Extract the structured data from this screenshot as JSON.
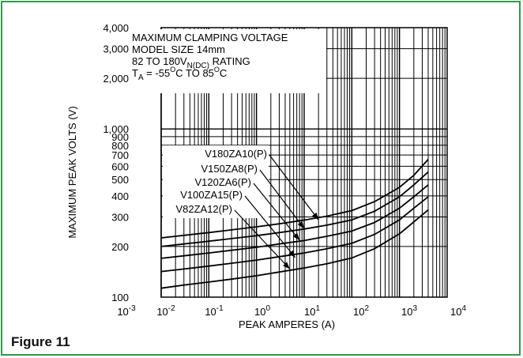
{
  "figure_caption": "Figure 11",
  "colors": {
    "border": "#2e9b4a",
    "ink": "#000000"
  },
  "chart_data": {
    "type": "line",
    "title_lines": [
      {
        "base": "MAXIMUM CLAMPING VOLTAGE",
        "sub": "",
        "sup1": "",
        "mid": "",
        "sup2": "",
        "rest": ""
      },
      {
        "base": "MODEL SIZE 14mm",
        "sub": "",
        "sup1": "",
        "mid": "",
        "sup2": "",
        "rest": ""
      },
      {
        "base": "82 TO 180V",
        "sub": "N(DC)",
        "sup1": "",
        "mid": "",
        "sup2": "",
        "rest": " RATING"
      },
      {
        "base": "T",
        "sub": "A",
        "sup1": "",
        "mid": " = -55",
        "sup2": "O",
        "rest": "C TO 85",
        "sup3": "O",
        "tail": "C"
      }
    ],
    "xlabel": "PEAK AMPERES (A)",
    "ylabel": "MAXIMUM PEAK VOLTS (V)",
    "x_scale": "log",
    "y_scale": "log",
    "xlim": [
      0.001,
      10000
    ],
    "ylim": [
      100,
      4000
    ],
    "grid": true,
    "x_ticks": [
      {
        "value": 0.001,
        "base": "10",
        "exp": "-3"
      },
      {
        "value": 0.01,
        "base": "10",
        "exp": "-2"
      },
      {
        "value": 0.1,
        "base": "10",
        "exp": "-1"
      },
      {
        "value": 1,
        "base": "10",
        "exp": "0"
      },
      {
        "value": 10,
        "base": "10",
        "exp": "1"
      },
      {
        "value": 100,
        "base": "10",
        "exp": "2"
      },
      {
        "value": 1000,
        "base": "10",
        "exp": "3"
      },
      {
        "value": 10000,
        "base": "10",
        "exp": "4"
      }
    ],
    "y_ticks": [
      {
        "value": 100,
        "label": "100"
      },
      {
        "value": 200,
        "label": "200"
      },
      {
        "value": 300,
        "label": "300"
      },
      {
        "value": 400,
        "label": "400"
      },
      {
        "value": 500,
        "label": "500"
      },
      {
        "value": 600,
        "label": "600"
      },
      {
        "value": 700,
        "label": "700"
      },
      {
        "value": 800,
        "label": "800"
      },
      {
        "value": 900,
        "label": "900"
      },
      {
        "value": 1000,
        "label": "1,000"
      },
      {
        "value": 2000,
        "label": "2,000"
      },
      {
        "value": 3000,
        "label": "3,000"
      },
      {
        "value": 4000,
        "label": "4,000"
      }
    ],
    "series": [
      {
        "name": "V180ZA10(P)",
        "arrow_to": [
          20,
          288
        ],
        "x": [
          0.01,
          0.03,
          0.1,
          0.3,
          1,
          3,
          10,
          30,
          100,
          300,
          1000,
          2000,
          4000
        ],
        "y": [
          225,
          233,
          242,
          251,
          262,
          273,
          287,
          303,
          327,
          370,
          450,
          530,
          660
        ]
      },
      {
        "name": "V150ZA8(P)",
        "arrow_to": [
          10,
          256
        ],
        "x": [
          0.01,
          0.03,
          0.1,
          0.3,
          1,
          3,
          10,
          30,
          100,
          300,
          1000,
          2000,
          4000
        ],
        "y": [
          200,
          207,
          215,
          223,
          232,
          242,
          254,
          268,
          288,
          324,
          395,
          465,
          555
        ]
      },
      {
        "name": "V120ZA6(P)",
        "arrow_to": [
          8,
          218
        ],
        "x": [
          0.01,
          0.03,
          0.1,
          0.3,
          1,
          3,
          10,
          30,
          100,
          300,
          1000,
          2000,
          4000
        ],
        "y": [
          170,
          176,
          183,
          190,
          198,
          207,
          217,
          230,
          247,
          278,
          338,
          395,
          465
        ]
      },
      {
        "name": "V100ZA15(P)",
        "arrow_to": [
          6.5,
          172
        ],
        "x": [
          0.01,
          0.03,
          0.1,
          0.3,
          1,
          3,
          10,
          30,
          100,
          300,
          1000,
          2000,
          4000
        ],
        "y": [
          142,
          147,
          153,
          159,
          166,
          174,
          183,
          194,
          209,
          236,
          288,
          338,
          395
        ]
      },
      {
        "name": "V82ZA12(P)",
        "arrow_to": [
          5,
          147
        ],
        "x": [
          0.01,
          0.03,
          0.1,
          0.3,
          1,
          3,
          10,
          30,
          100,
          300,
          1000,
          2000,
          4000
        ],
        "y": [
          113,
          118,
          123,
          128,
          134,
          141,
          149,
          158,
          171,
          194,
          238,
          280,
          330
        ]
      }
    ]
  }
}
